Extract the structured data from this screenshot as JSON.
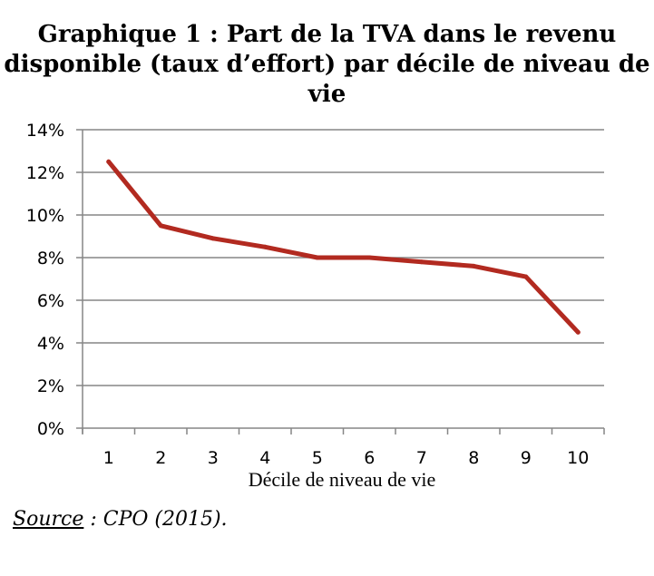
{
  "title_lines": [
    "Graphique 1 : Part de la TVA dans le revenu",
    "disponible (taux d’effort) par décile de niveau de",
    "vie"
  ],
  "source": {
    "label": "Source",
    "text": " : CPO (2015)."
  },
  "colors": {
    "line": "#b22a20",
    "grid": "#868686",
    "axis": "#868686"
  },
  "chart_data": {
    "type": "line",
    "title": "Graphique 1 : Part de la TVA dans le revenu disponible (taux d’effort) par décile de niveau de vie",
    "xlabel": "Décile de niveau de vie",
    "ylabel": "",
    "x": [
      "1",
      "2",
      "3",
      "4",
      "5",
      "6",
      "7",
      "8",
      "9",
      "10"
    ],
    "series": [
      {
        "values": [
          12.5,
          9.5,
          8.9,
          8.5,
          8.0,
          8.0,
          7.8,
          7.6,
          7.1,
          4.5
        ]
      }
    ],
    "ylim": [
      0,
      14
    ],
    "yticks": [
      "0%",
      "2%",
      "4%",
      "6%",
      "8%",
      "10%",
      "12%",
      "14%"
    ],
    "ytick_values": [
      0,
      2,
      4,
      6,
      8,
      10,
      12,
      14
    ],
    "grid": true,
    "legend": "none"
  }
}
